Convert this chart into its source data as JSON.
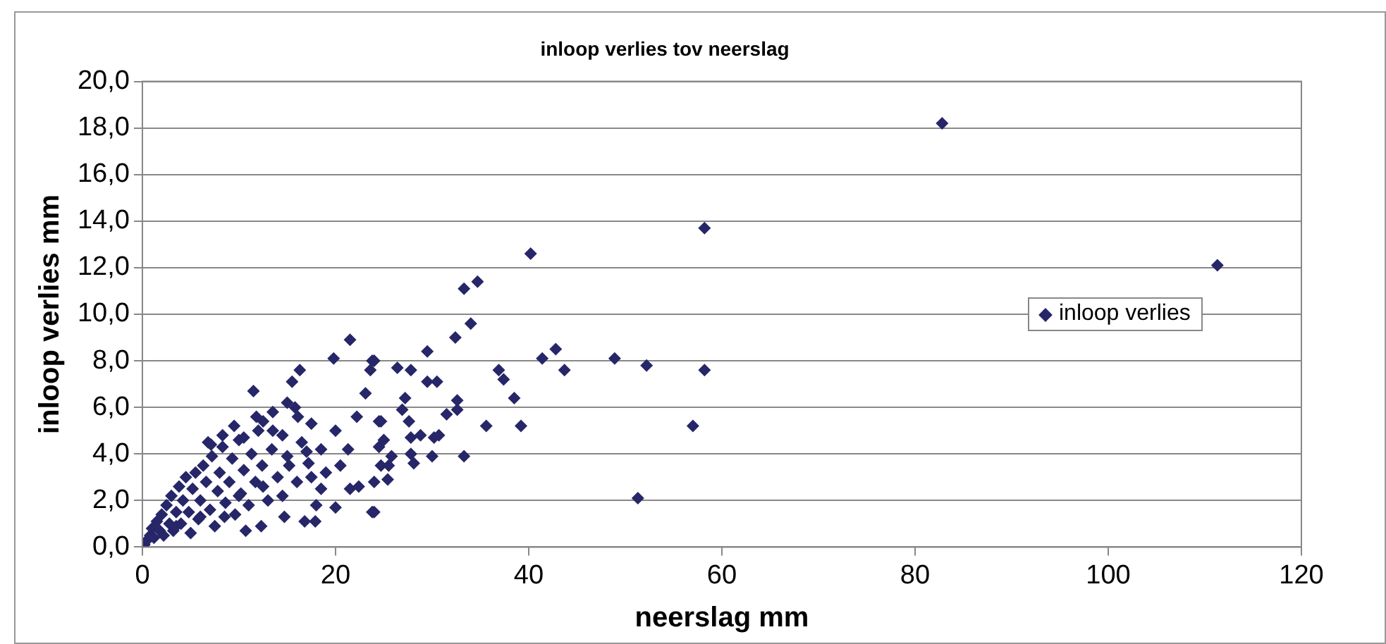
{
  "chart_data": {
    "type": "scatter",
    "title": "inloop verlies tov neerslag",
    "xlabel": "neerslag mm",
    "ylabel": "inloop verlies mm",
    "xlim": [
      0,
      120
    ],
    "xticks": [
      0,
      20,
      40,
      60,
      80,
      100,
      120
    ],
    "ylim": [
      0,
      20
    ],
    "yticks": [
      {
        "value": 0,
        "label": "0,0"
      },
      {
        "value": 2,
        "label": "2,0"
      },
      {
        "value": 4,
        "label": "4,0"
      },
      {
        "value": 6,
        "label": "6,0"
      },
      {
        "value": 8,
        "label": "8,0"
      },
      {
        "value": 10,
        "label": "10,0"
      },
      {
        "value": 12,
        "label": "12,0"
      },
      {
        "value": 14,
        "label": "14,0"
      },
      {
        "value": 16,
        "label": "16,0"
      },
      {
        "value": 18,
        "label": "18,0"
      },
      {
        "value": 20,
        "label": "20,0"
      }
    ],
    "grid": "y",
    "legend": "right",
    "marker": "diamond",
    "series": [
      {
        "name": "inloop verlies",
        "color": "#262669",
        "x": [
          0.2,
          0.5,
          0.8,
          1,
          1.2,
          1.5,
          1.8,
          2,
          2.2,
          2.5,
          2.8,
          3,
          3.2,
          3.5,
          3.8,
          4,
          4.2,
          4.5,
          4.8,
          5,
          5.2,
          5.5,
          5.8,
          6,
          6.3,
          6.6,
          7,
          7.2,
          7.5,
          7.8,
          8,
          8.3,
          8.6,
          9,
          9.3,
          9.6,
          10,
          10.2,
          10.5,
          11,
          11.3,
          11.7,
          12,
          12.4,
          13,
          13.4,
          14,
          14.5,
          15.2,
          16,
          16.5,
          17.2,
          18.5,
          19,
          6.8,
          9.5,
          11.8,
          13.5,
          21.5,
          19.8,
          11.5,
          16.3,
          15.5,
          23.8,
          23.6,
          23.1,
          15,
          15.8,
          16.1,
          12.5,
          8.3,
          7.1,
          10.5,
          13.5,
          17.5,
          20,
          22.2,
          21.3,
          24.5,
          20.5,
          21.5,
          22.4,
          20,
          23.8,
          18,
          16.8,
          17.9,
          14.7,
          10.7,
          12.3,
          18.5,
          17.5,
          15,
          17,
          14.5,
          12.5,
          10,
          8.5,
          6,
          3.5,
          58.2,
          40.2,
          33.3,
          34.7,
          34,
          32.4,
          29.5,
          26.4,
          27.8,
          24,
          29.5,
          30.5,
          36.9,
          37.4,
          38.5,
          41.4,
          42.8,
          43.7,
          48.9,
          52.2,
          58.2,
          57,
          51.3,
          35.6,
          39.2,
          27.2,
          32.6,
          26.9,
          31.5,
          32.6,
          24.7,
          27.6,
          27.8,
          28.8,
          30.2,
          30.7,
          25,
          24.5,
          25.8,
          27.8,
          30,
          33.3,
          28.1,
          24.7,
          25.5,
          25.4,
          24,
          24,
          82.8,
          111.3
        ],
        "values": [
          0.1,
          0.3,
          0.5,
          0.8,
          0.4,
          1.1,
          0.7,
          1.4,
          0.5,
          1.8,
          1,
          2.2,
          0.7,
          1.5,
          2.6,
          1,
          2,
          3,
          1.5,
          0.6,
          2.5,
          3.2,
          1.2,
          2,
          3.5,
          2.8,
          1.6,
          3.9,
          0.9,
          2.4,
          3.2,
          4.3,
          1.9,
          2.8,
          3.8,
          1.4,
          4.6,
          2.3,
          3.3,
          1.8,
          4,
          2.8,
          5,
          3.5,
          2,
          4.2,
          3,
          4.8,
          3.5,
          2.8,
          4.5,
          3.6,
          4.2,
          3.2,
          4.5,
          5.2,
          5.6,
          5.8,
          8.9,
          8.1,
          6.7,
          7.6,
          7.1,
          8,
          7.6,
          6.6,
          6.2,
          6,
          5.6,
          5.4,
          4.8,
          4.4,
          4.7,
          5,
          5.3,
          5,
          5.6,
          4.2,
          5.4,
          3.5,
          2.5,
          2.6,
          1.7,
          1.5,
          1.8,
          1.1,
          1.1,
          1.3,
          0.7,
          0.9,
          2.5,
          3,
          3.9,
          4.1,
          2.2,
          2.6,
          2.2,
          1.3,
          1.3,
          0.9,
          13.7,
          12.6,
          11.1,
          11.4,
          9.6,
          9,
          8.4,
          7.7,
          7.6,
          8,
          7.1,
          7.1,
          7.6,
          7.2,
          6.4,
          8.1,
          8.5,
          7.6,
          8.1,
          7.8,
          7.6,
          5.2,
          2.1,
          5.2,
          5.2,
          6.4,
          6.3,
          5.9,
          5.7,
          5.9,
          5.4,
          5.4,
          4.7,
          4.8,
          4.7,
          4.8,
          4.6,
          4.3,
          3.9,
          4,
          3.9,
          3.9,
          3.6,
          3.5,
          3.5,
          2.9,
          2.8,
          1.5,
          18.2,
          12.1
        ]
      }
    ]
  }
}
